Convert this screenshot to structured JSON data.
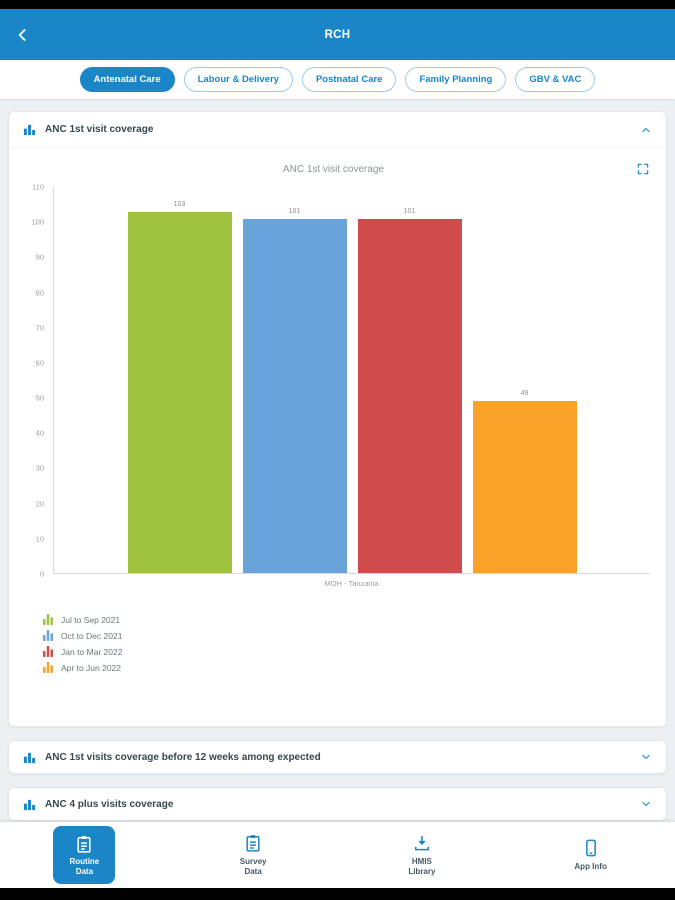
{
  "header": {
    "title": "RCH"
  },
  "tabs": {
    "items": [
      {
        "label": "Antenatal Care",
        "selected": true
      },
      {
        "label": "Labour & Delivery",
        "selected": false
      },
      {
        "label": "Postnatal Care",
        "selected": false
      },
      {
        "label": "Family Planning",
        "selected": false
      },
      {
        "label": "GBV & VAC",
        "selected": false
      }
    ]
  },
  "cards": [
    {
      "title": "ANC 1st visit coverage",
      "expanded": true
    },
    {
      "title": "ANC 1st visits coverage before 12 weeks among expected",
      "expanded": false
    },
    {
      "title": "ANC 4 plus visits coverage",
      "expanded": false
    }
  ],
  "chart_data": {
    "type": "bar",
    "title": "ANC 1st visit coverage",
    "categories": [
      "MOH - Tanzania"
    ],
    "series": [
      {
        "name": "Jul to Sep 2021",
        "values": [
          103
        ],
        "color": "#9ec23e"
      },
      {
        "name": "Oct to Dec 2021",
        "values": [
          101
        ],
        "color": "#68a4da"
      },
      {
        "name": "Jan to Mar 2022",
        "values": [
          101
        ],
        "color": "#d04c4b"
      },
      {
        "name": "Apr to Jun 2022",
        "values": [
          49
        ],
        "color": "#f8a22a"
      }
    ],
    "xlabel": "MOH - Tanzania",
    "ylabel": "",
    "ylim": [
      0,
      110
    ],
    "ytick_step": 10,
    "grid": false,
    "legend_position": "bottom-left"
  },
  "bottom_nav": {
    "items": [
      {
        "label": "Routine\nData",
        "icon": "clipboard-form",
        "selected": true
      },
      {
        "label": "Survey\nData",
        "icon": "clipboard",
        "selected": false
      },
      {
        "label": "HMIS\nLibrary",
        "icon": "download",
        "selected": false
      },
      {
        "label": "App Info",
        "icon": "smartphone",
        "selected": false
      }
    ]
  },
  "colors": {
    "accent": "#1a86c8",
    "chevron": "#4da3d8"
  }
}
